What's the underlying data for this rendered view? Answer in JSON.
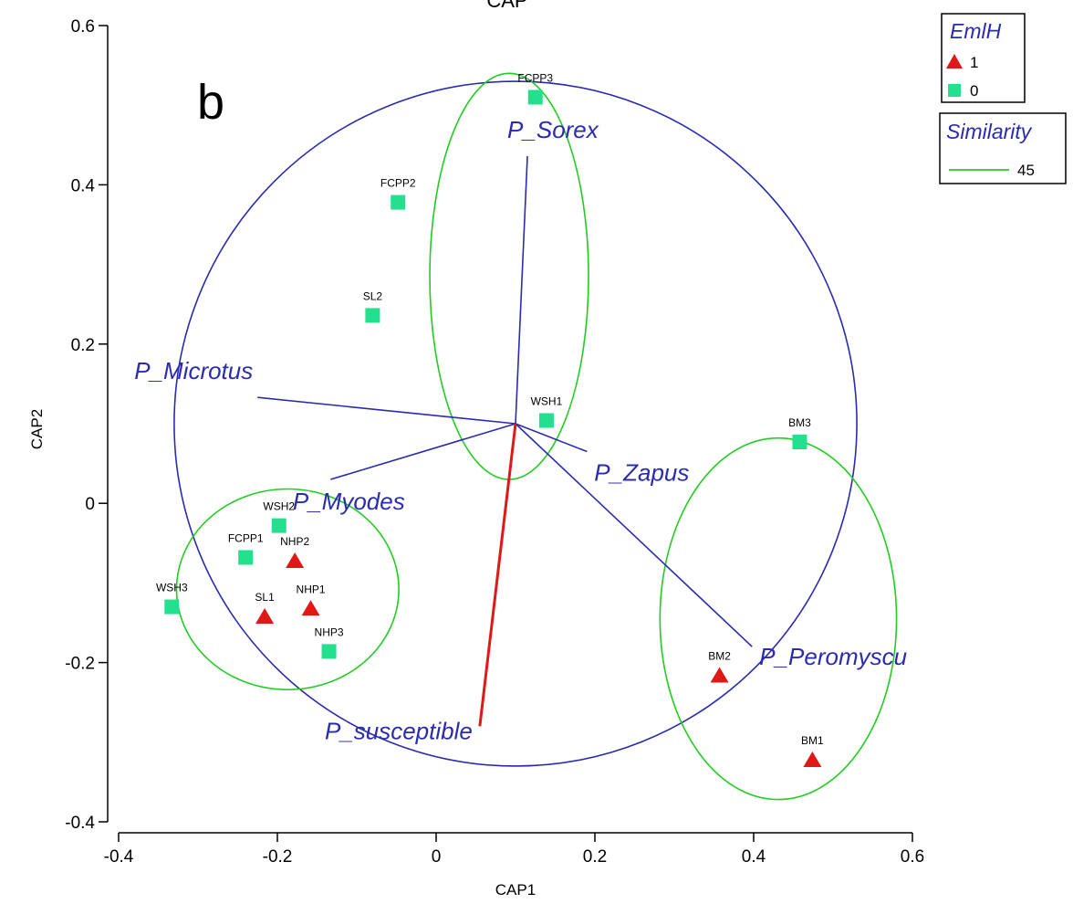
{
  "chart_data": {
    "type": "scatter",
    "title": "CAP",
    "panel_label": "b",
    "xlabel": "CAP1",
    "ylabel": "CAP2",
    "xlim": [
      -0.4,
      0.6
    ],
    "ylim": [
      -0.4,
      0.6
    ],
    "x_ticks": [
      -0.4,
      -0.2,
      0,
      0.2,
      0.4,
      0.6
    ],
    "x_tick_labels": [
      "-0.4",
      "-0.2",
      "0",
      "0.2",
      "0.4",
      "0.6"
    ],
    "y_ticks": [
      -0.4,
      -0.2,
      0,
      0.2,
      0.4,
      0.6
    ],
    "y_tick_labels": [
      "-0.4",
      "-0.2",
      "0",
      "0.2",
      "0.4",
      "0.6"
    ],
    "grid": false,
    "series": [
      {
        "name": "1",
        "marker": "triangle",
        "color": "#e01818",
        "points": [
          {
            "label": "NHP2",
            "x": -0.178,
            "y": -0.072
          },
          {
            "label": "NHP1",
            "x": -0.158,
            "y": -0.132
          },
          {
            "label": "SL1",
            "x": -0.216,
            "y": -0.142
          },
          {
            "label": "BM2",
            "x": 0.357,
            "y": -0.216
          },
          {
            "label": "BM1",
            "x": 0.474,
            "y": -0.322
          }
        ]
      },
      {
        "name": "0",
        "marker": "square",
        "color": "#22e08e",
        "points": [
          {
            "label": "FCPP3",
            "x": 0.125,
            "y": 0.51
          },
          {
            "label": "FCPP2",
            "x": -0.048,
            "y": 0.378
          },
          {
            "label": "SL2",
            "x": -0.08,
            "y": 0.236
          },
          {
            "label": "WSH1",
            "x": 0.139,
            "y": 0.104
          },
          {
            "label": "BM3",
            "x": 0.458,
            "y": 0.077
          },
          {
            "label": "WSH2",
            "x": -0.198,
            "y": -0.028
          },
          {
            "label": "FCPP1",
            "x": -0.24,
            "y": -0.068
          },
          {
            "label": "WSH3",
            "x": -0.333,
            "y": -0.13
          },
          {
            "label": "NHP3",
            "x": -0.135,
            "y": -0.186
          }
        ]
      }
    ],
    "vectors": [
      {
        "label": "P_Sorex",
        "x1": 0.1,
        "y1": 0.1,
        "x2": 0.115,
        "y2": 0.436,
        "color": "#2b2bb0"
      },
      {
        "label": "P_Microtus",
        "x1": 0.1,
        "y1": 0.1,
        "x2": -0.225,
        "y2": 0.133,
        "color": "#2b2bb0"
      },
      {
        "label": "P_Myodes",
        "x1": 0.1,
        "y1": 0.1,
        "x2": -0.133,
        "y2": 0.03,
        "color": "#2b2bb0"
      },
      {
        "label": "P_Zapus",
        "x1": 0.1,
        "y1": 0.1,
        "x2": 0.19,
        "y2": 0.065,
        "color": "#2b2bb0"
      },
      {
        "label": "P_Peromyscu",
        "x1": 0.1,
        "y1": 0.1,
        "x2": 0.398,
        "y2": -0.18,
        "color": "#2b2bb0"
      },
      {
        "label": "P_susceptible",
        "x1": 0.1,
        "y1": 0.1,
        "x2": 0.055,
        "y2": -0.28,
        "color": "#e01818"
      }
    ],
    "correlation_circle": {
      "cx": 0.1,
      "cy": 0.1,
      "r": 0.43,
      "color": "#2b2bb0"
    },
    "similarity_ellipses": [
      {
        "cx": 0.092,
        "cy": 0.285,
        "rx": 0.1,
        "ry": 0.255,
        "color": "#22cc22"
      },
      {
        "cx": -0.187,
        "cy": -0.108,
        "rx": 0.14,
        "ry": 0.126,
        "color": "#22cc22"
      },
      {
        "cx": 0.431,
        "cy": -0.145,
        "rx": 0.149,
        "ry": 0.227,
        "color": "#22cc22"
      }
    ],
    "legend": {
      "placement": "top-right",
      "group_title": "EmlH",
      "group_entries": [
        {
          "label": "1",
          "marker": "triangle",
          "color": "#e01818"
        },
        {
          "label": "0",
          "marker": "square",
          "color": "#22e08e"
        }
      ],
      "similarity_title": "Similarity",
      "similarity_entries": [
        {
          "label": "45",
          "color": "#22cc22"
        }
      ]
    }
  }
}
